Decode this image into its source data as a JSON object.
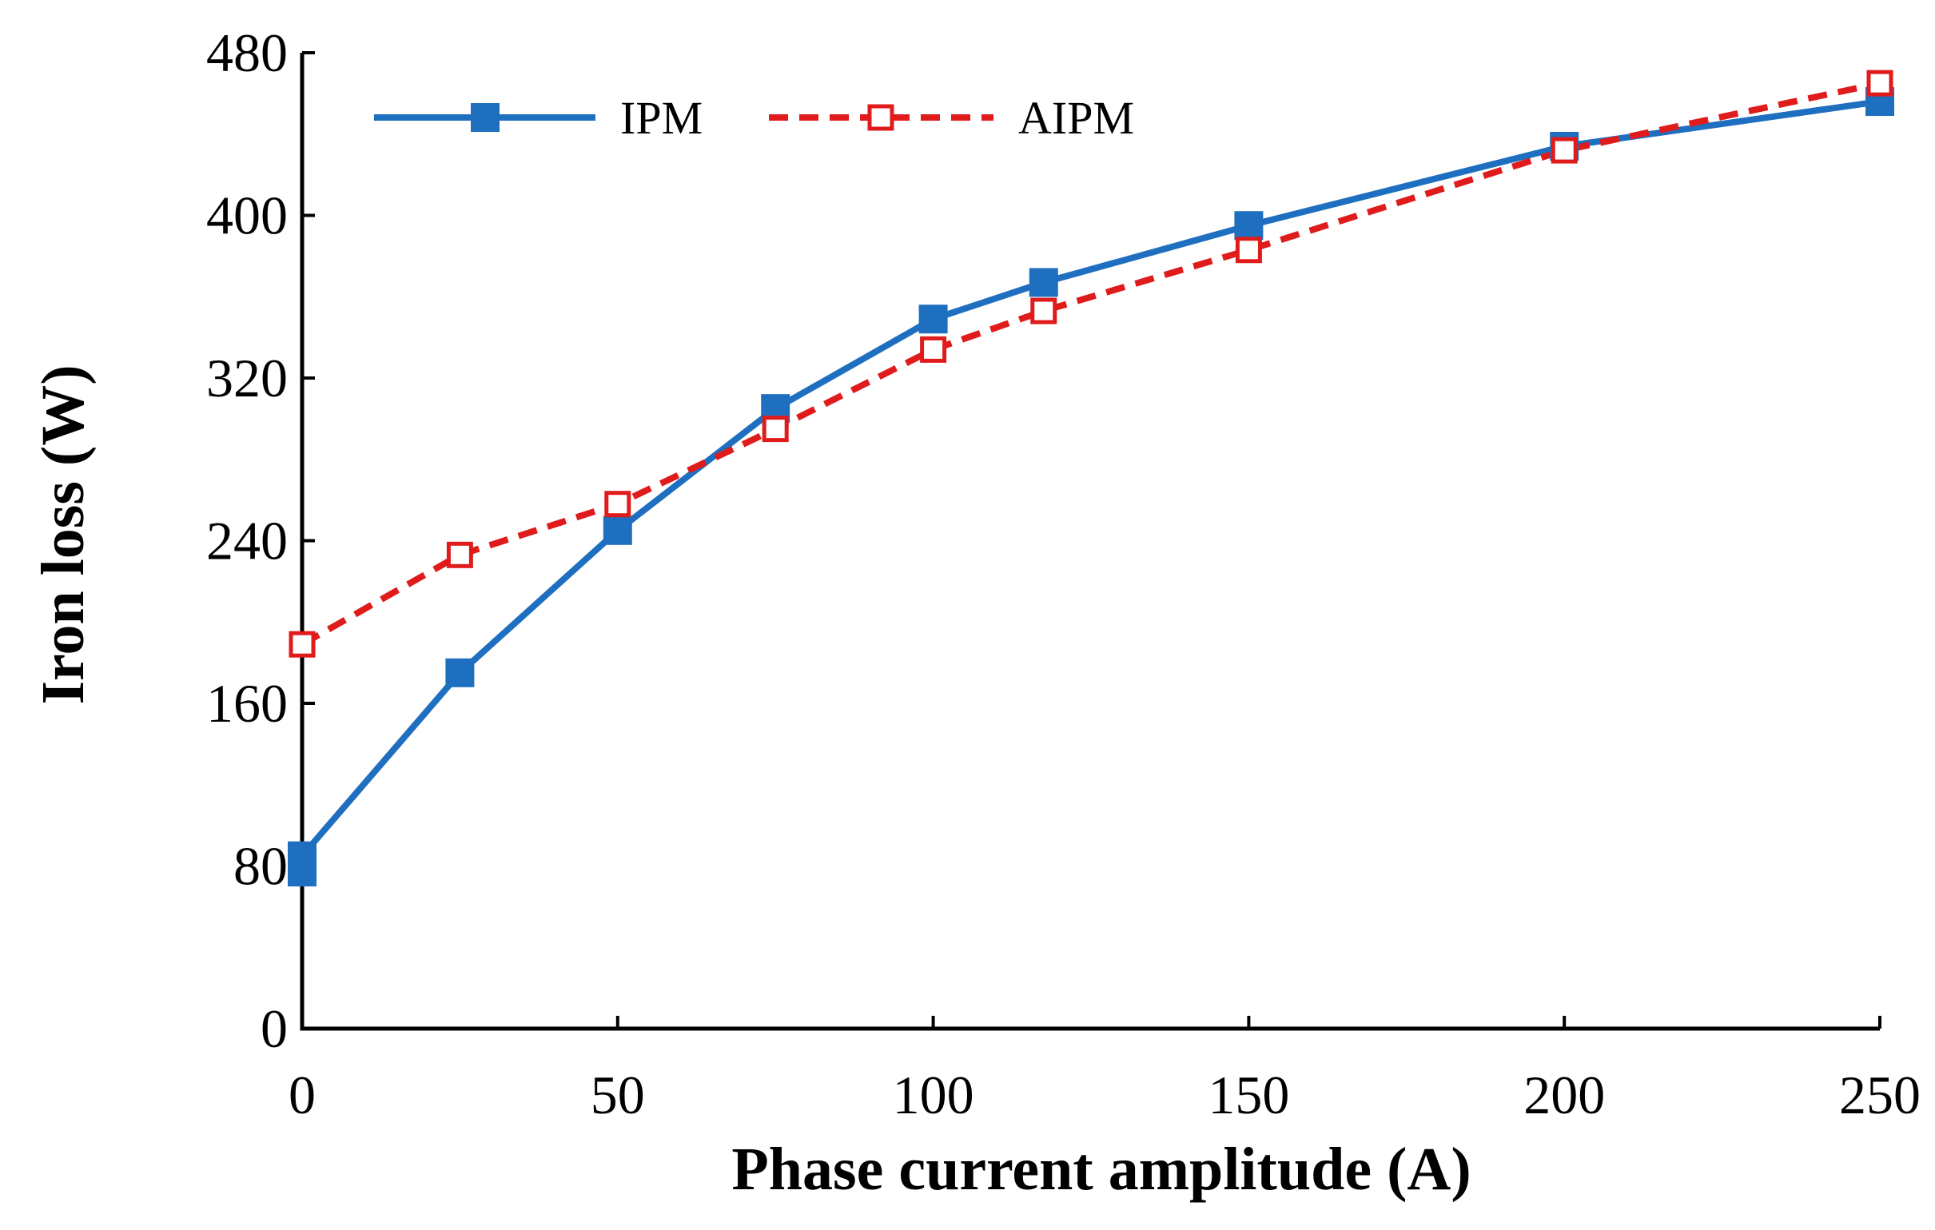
{
  "chart_data": {
    "type": "line",
    "title": "",
    "xlabel": "Phase current amplitude (A)",
    "ylabel": "Iron loss (W)",
    "xlim": [
      0,
      250
    ],
    "ylim": [
      0,
      480
    ],
    "xticks": [
      0,
      50,
      100,
      150,
      200,
      250
    ],
    "yticks": [
      0,
      80,
      160,
      240,
      320,
      400,
      480
    ],
    "grid": false,
    "legend_position": "top-left",
    "series": [
      {
        "name": "IPM",
        "color": "#1f6fc0",
        "line_style": "solid",
        "marker": "filled-square",
        "x": [
          0,
          0,
          25,
          50,
          75,
          100,
          117.5,
          150,
          200,
          250
        ],
        "y": [
          77,
          85,
          175,
          245,
          305,
          349,
          367,
          395,
          434,
          456
        ]
      },
      {
        "name": "AIPM",
        "color": "#e01b1b",
        "line_style": "dashed",
        "marker": "hollow-square",
        "x": [
          0,
          25,
          50,
          75,
          100,
          117.5,
          150,
          200,
          250
        ],
        "y": [
          189,
          233,
          258,
          295,
          334,
          353,
          383,
          432,
          465
        ]
      }
    ]
  }
}
